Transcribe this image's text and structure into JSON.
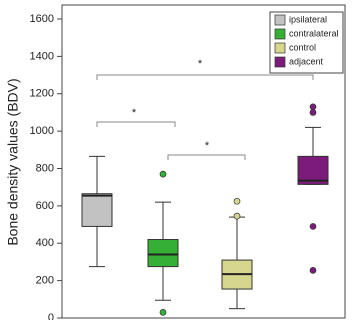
{
  "chart_data": {
    "type": "box",
    "y_label": "Bone density values (BDV)",
    "ylim": [
      0,
      1675
    ],
    "yticks": [
      0,
      200,
      400,
      600,
      800,
      1000,
      1200,
      1400,
      1600
    ],
    "legend": "upper right",
    "boxes": [
      {
        "name": "ipsilateral",
        "color": "#c2c2c2",
        "whisker_low": 275,
        "q1": 490,
        "median": 655,
        "q3": 665,
        "whisker_high": 865,
        "outliers": []
      },
      {
        "name": "contralateral",
        "color": "#35b035",
        "whisker_low": 95,
        "q1": 275,
        "median": 340,
        "q3": 420,
        "whisker_high": 620,
        "outliers": [
          770,
          30
        ]
      },
      {
        "name": "control",
        "color": "#d6d68e",
        "whisker_low": 50,
        "q1": 155,
        "median": 235,
        "q3": 310,
        "whisker_high": 540,
        "outliers": [
          625,
          545
        ]
      },
      {
        "name": "adjacent",
        "color": "#7b1c7b",
        "whisker_low": 715,
        "q1": 715,
        "median": 735,
        "q3": 865,
        "whisker_high": 1020,
        "outliers": [
          1130,
          1100,
          490,
          255
        ]
      }
    ],
    "annotations": [
      "*",
      "*",
      "*"
    ]
  }
}
